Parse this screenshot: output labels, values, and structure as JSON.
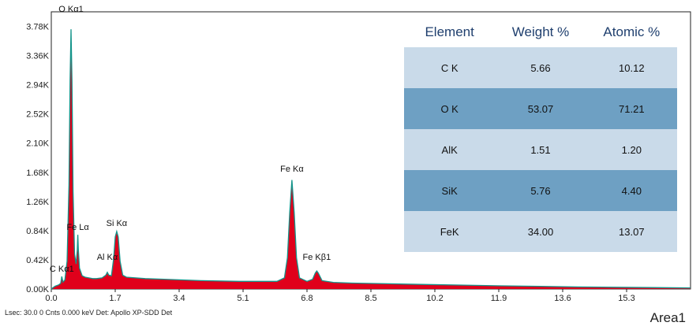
{
  "chart_data": {
    "type": "line",
    "xlim": [
      0,
      17
    ],
    "ylim": [
      0,
      3990
    ],
    "x_ticks": [
      "0.0",
      "1.7",
      "3.4",
      "5.1",
      "6.8",
      "8.5",
      "10.2",
      "11.9",
      "13.6",
      "15.3"
    ],
    "y_ticks": [
      "0.00K",
      "0.42K",
      "0.84K",
      "1.26K",
      "1.68K",
      "2.10K",
      "2.52K",
      "2.94K",
      "3.36K",
      "3.78K"
    ],
    "peak_labels": [
      {
        "text": "O  Kα1",
        "x": 0.525,
        "y": 3990
      },
      {
        "text": "Fe Lα",
        "x": 0.705,
        "y": 850
      },
      {
        "text": "Si Kα",
        "x": 1.74,
        "y": 905
      },
      {
        "text": "Al Kα",
        "x": 1.49,
        "y": 420
      },
      {
        "text": "C  Kα1",
        "x": 0.28,
        "y": 250
      },
      {
        "text": "Fe Kα",
        "x": 6.4,
        "y": 1690
      },
      {
        "text": "Fe Kβ1",
        "x": 7.06,
        "y": 420
      }
    ],
    "series": [
      {
        "points": [
          [
            0.0,
            0
          ],
          [
            0.05,
            20
          ],
          [
            0.1,
            40
          ],
          [
            0.2,
            60
          ],
          [
            0.25,
            80
          ],
          [
            0.28,
            180
          ],
          [
            0.31,
            100
          ],
          [
            0.36,
            130
          ],
          [
            0.42,
            400
          ],
          [
            0.47,
            1500
          ],
          [
            0.5,
            3000
          ],
          [
            0.525,
            3740
          ],
          [
            0.55,
            3000
          ],
          [
            0.58,
            1400
          ],
          [
            0.62,
            500
          ],
          [
            0.66,
            360
          ],
          [
            0.69,
            560
          ],
          [
            0.705,
            780
          ],
          [
            0.72,
            560
          ],
          [
            0.75,
            300
          ],
          [
            0.82,
            190
          ],
          [
            0.9,
            170
          ],
          [
            1.0,
            160
          ],
          [
            1.1,
            150
          ],
          [
            1.2,
            150
          ],
          [
            1.35,
            160
          ],
          [
            1.45,
            200
          ],
          [
            1.49,
            240
          ],
          [
            1.53,
            200
          ],
          [
            1.6,
            190
          ],
          [
            1.66,
            450
          ],
          [
            1.7,
            750
          ],
          [
            1.74,
            830
          ],
          [
            1.78,
            750
          ],
          [
            1.83,
            400
          ],
          [
            1.9,
            200
          ],
          [
            2.0,
            170
          ],
          [
            2.5,
            150
          ],
          [
            3.0,
            140
          ],
          [
            4.0,
            120
          ],
          [
            5.0,
            110
          ],
          [
            5.6,
            110
          ],
          [
            6.0,
            110
          ],
          [
            6.2,
            160
          ],
          [
            6.28,
            450
          ],
          [
            6.34,
            1100
          ],
          [
            6.4,
            1570
          ],
          [
            6.46,
            1100
          ],
          [
            6.52,
            450
          ],
          [
            6.6,
            160
          ],
          [
            6.8,
            110
          ],
          [
            6.95,
            140
          ],
          [
            7.02,
            230
          ],
          [
            7.06,
            260
          ],
          [
            7.1,
            230
          ],
          [
            7.2,
            120
          ],
          [
            7.5,
            95
          ],
          [
            8.0,
            85
          ],
          [
            9.0,
            75
          ],
          [
            10.0,
            65
          ],
          [
            11.0,
            55
          ],
          [
            12.0,
            45
          ],
          [
            13.0,
            38
          ],
          [
            14.0,
            30
          ],
          [
            15.0,
            25
          ],
          [
            16.0,
            20
          ],
          [
            17.0,
            15
          ]
        ]
      }
    ]
  },
  "table": {
    "headers": [
      "Element",
      "Weight %",
      "Atomic %"
    ],
    "rows": [
      [
        "C K",
        "5.66",
        "10.12"
      ],
      [
        "O K",
        "53.07",
        "71.21"
      ],
      [
        "AlK",
        "1.51",
        "1.20"
      ],
      [
        "SiK",
        "5.76",
        "4.40"
      ],
      [
        "FeK",
        "34.00",
        "13.07"
      ]
    ]
  },
  "footer": "Lsec: 30.0 0 Cnts  0.000 keV Det: Apollo XP-SDD Det",
  "area_label": "Area1",
  "colors": {
    "fill": "#e0001b",
    "outline": "#14948a",
    "frame": "#222222"
  }
}
